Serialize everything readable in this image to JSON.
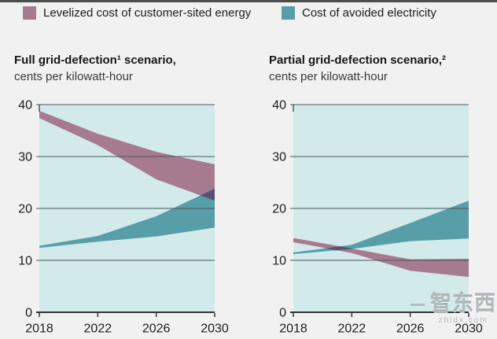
{
  "colors": {
    "levelized": "#a67b90",
    "avoided": "#579ea9",
    "overlap": "#5a5272",
    "plot_bg": "#d2ebea",
    "page_bg": "#f2f1f1",
    "gridline": "#47565c",
    "axis": "#2e3439",
    "top_bar": "#4d4d4d",
    "text": "#1b1b1b"
  },
  "legend": {
    "items": [
      {
        "label": "Levelized cost of customer-sited energy",
        "color_key": "levelized"
      },
      {
        "label": "Cost of avoided electricity",
        "color_key": "avoided"
      }
    ]
  },
  "watermark": {
    "text": "智东西",
    "subtext": "zhidx.com"
  },
  "chart_data": [
    {
      "type": "area",
      "title": "Full grid-defection¹ scenario,",
      "subtitle": "cents per kilowatt-hour",
      "xlabel": "",
      "ylabel": "cents per kilowatt-hour",
      "x": [
        2018,
        2022,
        2026,
        2030
      ],
      "x_ticks": [
        2018,
        2022,
        2026,
        2030
      ],
      "y_ticks": [
        0,
        10,
        20,
        30,
        40
      ],
      "ylim": [
        0,
        40
      ],
      "grid": true,
      "legend_position": "top",
      "series": [
        {
          "name": "Levelized cost of customer-sited energy",
          "color_key": "levelized",
          "upper": [
            38.8,
            34.4,
            30.9,
            28.5
          ],
          "lower": [
            37.4,
            32.2,
            25.6,
            21.5
          ]
        },
        {
          "name": "Cost of avoided electricity",
          "color_key": "avoided",
          "upper": [
            12.8,
            14.7,
            18.5,
            23.8
          ],
          "lower": [
            12.4,
            13.6,
            14.6,
            16.3
          ]
        }
      ]
    },
    {
      "type": "area",
      "title": "Partial grid-defection scenario,²",
      "subtitle": "cents per kilowatt-hour",
      "xlabel": "",
      "ylabel": "cents per kilowatt-hour",
      "x": [
        2018,
        2022,
        2026,
        2030
      ],
      "x_ticks": [
        2018,
        2022,
        2026,
        2030
      ],
      "y_ticks": [
        0,
        10,
        20,
        30,
        40
      ],
      "ylim": [
        0,
        40
      ],
      "grid": true,
      "legend_position": "top",
      "series": [
        {
          "name": "Levelized cost of customer-sited energy",
          "color_key": "levelized",
          "upper": [
            14.3,
            12.3,
            10.2,
            10.3
          ],
          "lower": [
            13.5,
            11.4,
            8.0,
            6.8
          ]
        },
        {
          "name": "Cost of avoided electricity",
          "color_key": "avoided",
          "upper": [
            11.5,
            13.0,
            17.2,
            21.5
          ],
          "lower": [
            11.2,
            12.2,
            13.7,
            14.2
          ]
        }
      ]
    }
  ]
}
